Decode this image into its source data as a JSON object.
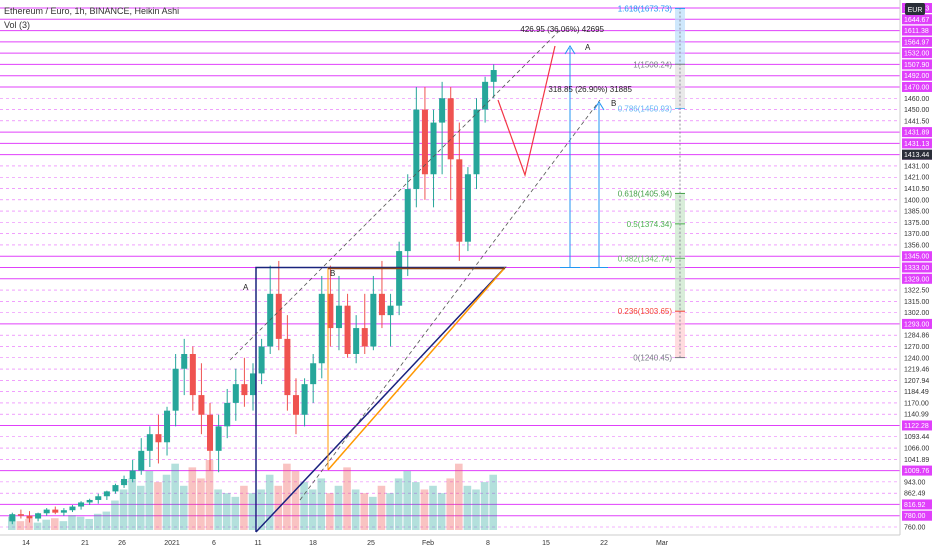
{
  "header": {
    "symbol_title": "Ethereum / Euro, 1h, BINANCE, Heikin Ashi",
    "indicator": "Vol (3)",
    "currency_badge": "EUR"
  },
  "colors": {
    "up": "#26a69a",
    "down": "#ef5350",
    "level_line": "#e040fb",
    "triangle_blue": "#1a237e",
    "triangle_orange": "#ff9800",
    "brown_line": "#8b4513",
    "proj_blue": "#2196f3",
    "red_path": "#f23645",
    "fib_gray": "#787b86",
    "fib_786": "#64b5f6",
    "fib_618": "#43a047",
    "fib_5": "#4caf50",
    "fib_382": "#66bb6a",
    "fib_236": "#f44336"
  },
  "chart_data": {
    "type": "line",
    "title": "Ethereum / Euro, 1h, BINANCE, Heikin Ashi",
    "price_scale_labels": [
      "1674.83",
      "1644.67",
      "1611.38",
      "1564.97",
      "1532.00",
      "1507.90",
      "1492.00",
      "1470.00",
      "1460.00",
      "1450.00",
      "1441.50",
      "1431.89",
      "1431.13",
      "1413.44",
      "1431.00",
      "1421.00",
      "1410.50",
      "1400.00",
      "1385.00",
      "1375.00",
      "1370.00",
      "1356.00",
      "1345.00",
      "1333.00",
      "1329.00",
      "1322.50",
      "1315.00",
      "1302.00",
      "1293.00",
      "1284.86",
      "1270.00",
      "1240.00",
      "1219.46",
      "1207.94",
      "1184.49",
      "1170.00",
      "1140.99",
      "1122.28",
      "1093.44",
      "1066.00",
      "1041.89",
      "1009.76",
      "943.00",
      "862.49",
      "816.92",
      "780.00",
      "760.00"
    ],
    "highlighted_price_labels": [
      "1674.83",
      "1644.67",
      "1611.38",
      "1564.97",
      "1532.00",
      "1507.90",
      "1492.00",
      "1470.00",
      "1431.89",
      "1431.13",
      "1413.44",
      "1345.00",
      "1333.00",
      "1329.00",
      "1293.00",
      "1122.28",
      "1009.76",
      "816.92",
      "780.00"
    ],
    "time_axis_labels": [
      "14",
      "21",
      "26",
      "2021",
      "6",
      "11",
      "18",
      "25",
      "Feb",
      "8",
      "15",
      "22",
      "Mar"
    ],
    "fibonacci": [
      {
        "level": "1.618",
        "price": 1673.73,
        "label": "1.618(1673.73)"
      },
      {
        "level": "1",
        "price": 1508.24,
        "label": "1(1508.24)"
      },
      {
        "level": "0.786",
        "price": 1450.93,
        "label": "0.786(1450.93)"
      },
      {
        "level": "0.618",
        "price": 1405.94,
        "label": "0.618(1405.94)"
      },
      {
        "level": "0.5",
        "price": 1374.34,
        "label": "0.5(1374.34)"
      },
      {
        "level": "0.382",
        "price": 1342.74,
        "label": "0.382(1342.74)"
      },
      {
        "level": "0.236",
        "price": 1303.65,
        "label": "0.236(1303.65)"
      },
      {
        "level": "0",
        "price": 1240.45,
        "label": "0(1240.45)"
      }
    ],
    "annotations": {
      "measure_a": "426.95 (36.06%) 42695",
      "measure_b": "318.85 (26.90%) 31885",
      "label_a": "A",
      "label_b": "B"
    },
    "candles": [
      [
        0,
        770,
        790,
        765,
        785
      ],
      [
        1,
        785,
        800,
        775,
        780
      ],
      [
        2,
        780,
        795,
        768,
        775
      ],
      [
        3,
        775,
        790,
        770,
        788
      ],
      [
        4,
        788,
        805,
        780,
        800
      ],
      [
        5,
        800,
        810,
        785,
        790
      ],
      [
        6,
        790,
        805,
        780,
        798
      ],
      [
        7,
        798,
        815,
        792,
        810
      ],
      [
        8,
        810,
        830,
        800,
        825
      ],
      [
        9,
        825,
        840,
        815,
        835
      ],
      [
        10,
        835,
        860,
        820,
        850
      ],
      [
        11,
        850,
        880,
        835,
        875
      ],
      [
        12,
        875,
        930,
        860,
        920
      ],
      [
        13,
        920,
        980,
        900,
        960
      ],
      [
        14,
        960,
        1040,
        940,
        1010
      ],
      [
        15,
        1010,
        1090,
        985,
        1060
      ],
      [
        16,
        1060,
        1120,
        1020,
        1100
      ],
      [
        17,
        1100,
        1140,
        1030,
        1080
      ],
      [
        18,
        1080,
        1160,
        1050,
        1150
      ],
      [
        19,
        1150,
        1250,
        1120,
        1220
      ],
      [
        20,
        1220,
        1280,
        1180,
        1250
      ],
      [
        21,
        1250,
        1270,
        1150,
        1180
      ],
      [
        22,
        1180,
        1230,
        1100,
        1140
      ],
      [
        23,
        1140,
        1170,
        1010,
        1060
      ],
      [
        24,
        1060,
        1140,
        1000,
        1120
      ],
      [
        25,
        1120,
        1190,
        1090,
        1170
      ],
      [
        26,
        1170,
        1220,
        1130,
        1200
      ],
      [
        27,
        1200,
        1240,
        1160,
        1180
      ],
      [
        28,
        1180,
        1230,
        1150,
        1215
      ],
      [
        29,
        1215,
        1280,
        1200,
        1270
      ],
      [
        30,
        1270,
        1335,
        1250,
        1320
      ],
      [
        31,
        1320,
        1340,
        1260,
        1280
      ],
      [
        32,
        1280,
        1300,
        1150,
        1180
      ],
      [
        33,
        1180,
        1210,
        1100,
        1140
      ],
      [
        34,
        1140,
        1210,
        1120,
        1200
      ],
      [
        35,
        1200,
        1250,
        1170,
        1230
      ],
      [
        36,
        1230,
        1330,
        1210,
        1320
      ],
      [
        37,
        1320,
        1335,
        1270,
        1290
      ],
      [
        38,
        1290,
        1330,
        1260,
        1310
      ],
      [
        39,
        1310,
        1320,
        1240,
        1250
      ],
      [
        40,
        1250,
        1300,
        1230,
        1290
      ],
      [
        41,
        1290,
        1320,
        1250,
        1270
      ],
      [
        42,
        1270,
        1330,
        1260,
        1320
      ],
      [
        43,
        1320,
        1340,
        1290,
        1300
      ],
      [
        44,
        1300,
        1320,
        1270,
        1310
      ],
      [
        45,
        1310,
        1360,
        1300,
        1350
      ],
      [
        46,
        1350,
        1420,
        1330,
        1410
      ],
      [
        47,
        1410,
        1470,
        1390,
        1450
      ],
      [
        48,
        1450,
        1470,
        1400,
        1420
      ],
      [
        49,
        1420,
        1450,
        1390,
        1440
      ],
      [
        50,
        1440,
        1480,
        1420,
        1460
      ],
      [
        51,
        1460,
        1470,
        1400,
        1415
      ],
      [
        52,
        1415,
        1440,
        1340,
        1360
      ],
      [
        53,
        1360,
        1430,
        1350,
        1420
      ],
      [
        54,
        1420,
        1460,
        1410,
        1450
      ],
      [
        55,
        1450,
        1490,
        1440,
        1480
      ],
      [
        56,
        1480,
        1508,
        1460,
        1500
      ]
    ],
    "volume": [
      18,
      12,
      15,
      10,
      14,
      16,
      12,
      20,
      18,
      15,
      22,
      25,
      40,
      55,
      70,
      60,
      80,
      65,
      75,
      90,
      60,
      85,
      70,
      95,
      55,
      50,
      45,
      60,
      50,
      55,
      75,
      60,
      90,
      80,
      65,
      55,
      70,
      50,
      60,
      85,
      55,
      50,
      45,
      60,
      50,
      70,
      80,
      65,
      55,
      60,
      50,
      70,
      90,
      60,
      55,
      65,
      75
    ]
  }
}
